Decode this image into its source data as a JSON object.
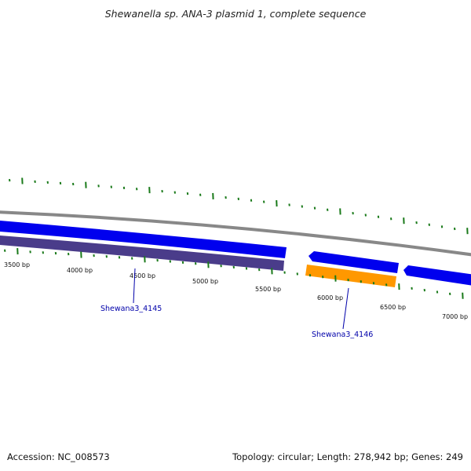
{
  "title": "Shewanella sp. ANA-3 plasmid 1, complete sequence",
  "footer": {
    "accession": "Accession: NC_008573",
    "summary": "Topology: circular; Length: 278,942 bp; Genes: 249"
  },
  "colors": {
    "backbone": "#888888",
    "forward_gene": "#0000ee",
    "reverse_gene_purple": "#4a3c8a",
    "reverse_gene_orange": "#ff9800",
    "ticks": "#1a7a1a",
    "label": "#0000aa"
  },
  "scale": {
    "ticks": [
      {
        "bp": 3500,
        "label": "3500 bp"
      },
      {
        "bp": 4000,
        "label": "4000 bp"
      },
      {
        "bp": 4500,
        "label": "4500 bp"
      },
      {
        "bp": 5000,
        "label": "5000 bp"
      },
      {
        "bp": 5500,
        "label": "5500 bp"
      },
      {
        "bp": 6000,
        "label": "6000 bp"
      },
      {
        "bp": 6500,
        "label": "6500 bp"
      },
      {
        "bp": 7000,
        "label": "7000 bp"
      }
    ]
  },
  "genes": [
    {
      "name": "Shewana3_4145",
      "strand": "reverse",
      "track": "purple"
    },
    {
      "name": "Shewana3_4146",
      "strand": "reverse",
      "track": "orange"
    }
  ]
}
